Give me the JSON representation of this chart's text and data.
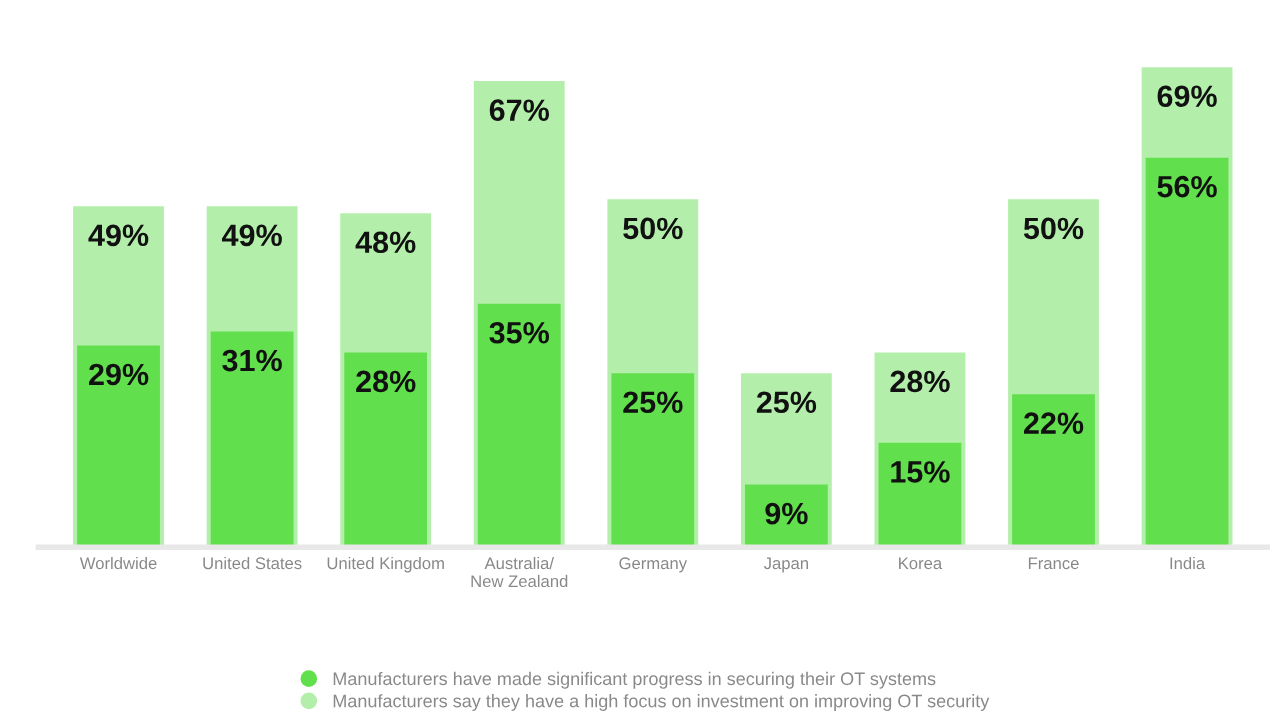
{
  "chart_data": {
    "type": "bar",
    "categories": [
      "Worldwide",
      "United States",
      "United Kingdom",
      "Australia/\nNew Zealand",
      "Germany",
      "Japan",
      "Korea",
      "France",
      "India"
    ],
    "series": [
      {
        "name": "Manufacturers say they have a high focus on investment on improving OT security",
        "color": "#b3efaa",
        "values": [
          49,
          49,
          48,
          67,
          50,
          25,
          28,
          50,
          69
        ],
        "value_labels": [
          "49%",
          "49%",
          "48%",
          "67%",
          "50%",
          "25%",
          "28%",
          "50%",
          "69%"
        ]
      },
      {
        "name": "Manufacturers have made significant progress in securing their OT systems",
        "color": "#62df4c",
        "values": [
          29,
          31,
          28,
          35,
          25,
          9,
          15,
          22,
          56
        ],
        "value_labels": [
          "29%",
          "31%",
          "28%",
          "35%",
          "25%",
          "9%",
          "15%",
          "22%",
          "56%"
        ]
      }
    ],
    "legend": "bottom",
    "grid": false
  }
}
